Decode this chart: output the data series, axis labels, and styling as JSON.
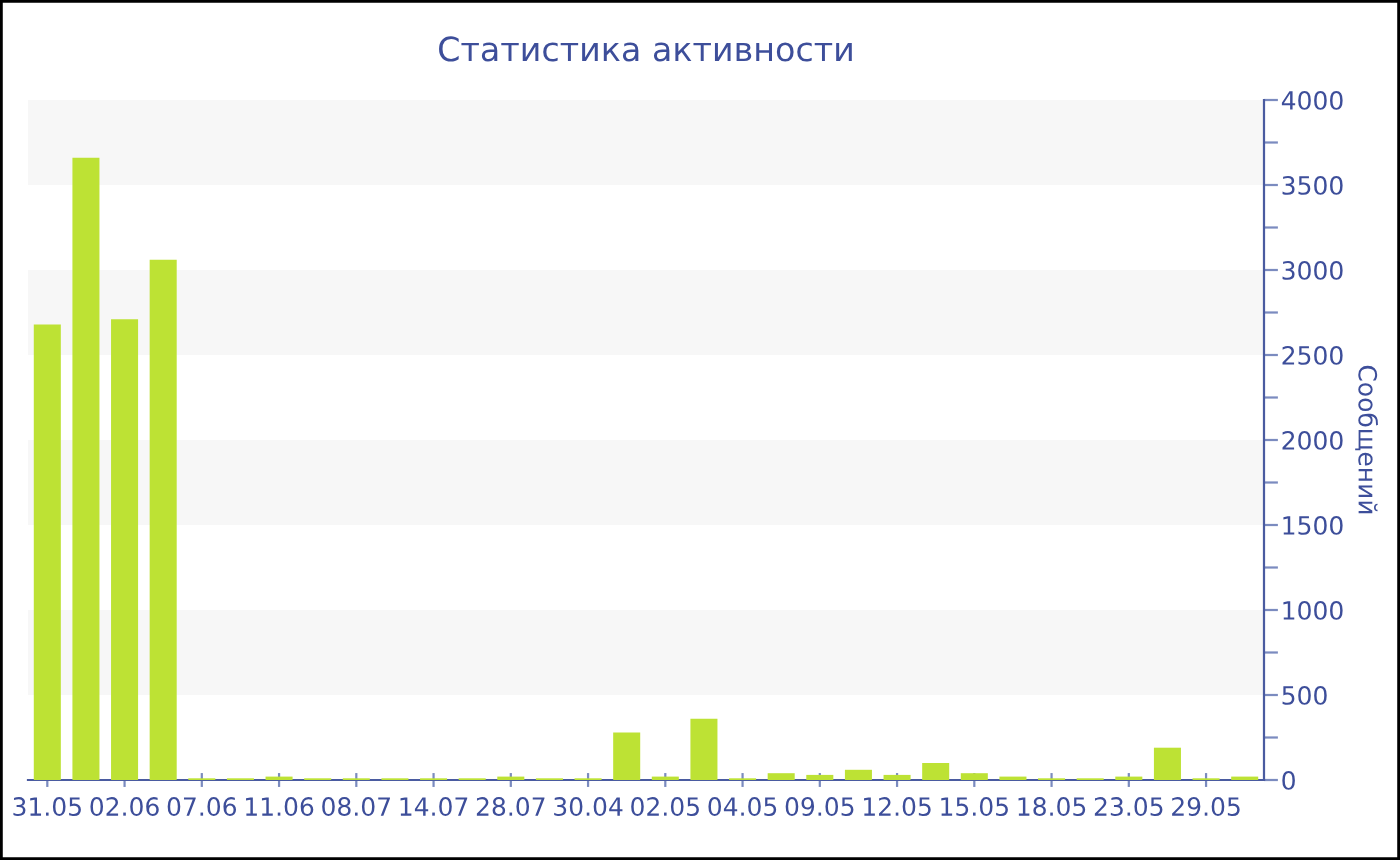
{
  "chart_data": {
    "type": "bar",
    "title": "Статистика активности",
    "ylabel": "Сообщений",
    "categories": [
      "31.05",
      null,
      "02.06",
      null,
      "07.06",
      null,
      "11.06",
      null,
      "08.07",
      null,
      "14.07",
      null,
      "28.07",
      null,
      "30.04",
      null,
      "02.05",
      null,
      "04.05",
      null,
      "09.05",
      null,
      "12.05",
      null,
      "15.05",
      null,
      "18.05",
      null,
      "23.05",
      null,
      "29.05",
      null
    ],
    "values": [
      2680,
      3660,
      2710,
      3060,
      10,
      10,
      20,
      10,
      10,
      10,
      10,
      10,
      20,
      10,
      10,
      280,
      20,
      360,
      10,
      40,
      30,
      60,
      30,
      100,
      40,
      20,
      10,
      10,
      20,
      190,
      10,
      20
    ],
    "color": "#bde234",
    "ylim": [
      0,
      4000
    ],
    "yticks": [
      0,
      {
        "value": 250,
        "label": null
      },
      500,
      {
        "value": 750,
        "label": null
      },
      1000,
      {
        "value": 1250,
        "label": null
      },
      1500,
      {
        "value": 1750,
        "label": null
      },
      2000,
      {
        "value": 2250,
        "label": null
      },
      2500,
      {
        "value": 2750,
        "label": null
      },
      3000,
      {
        "value": 3250,
        "label": null
      },
      3500,
      {
        "value": 3750,
        "label": null
      },
      4000
    ],
    "bands": [
      {
        "axis": "y",
        "from": 500,
        "to": 1000,
        "color": "#f7f7f7"
      },
      {
        "axis": "y",
        "from": 1500,
        "to": 2000,
        "color": "#f7f7f7"
      },
      {
        "axis": "y",
        "from": 2500,
        "to": 3000,
        "color": "#f7f7f7"
      },
      {
        "axis": "y",
        "from": 3500,
        "to": 4000,
        "color": "#f7f7f7"
      }
    ],
    "grid": false,
    "legend": false
  }
}
